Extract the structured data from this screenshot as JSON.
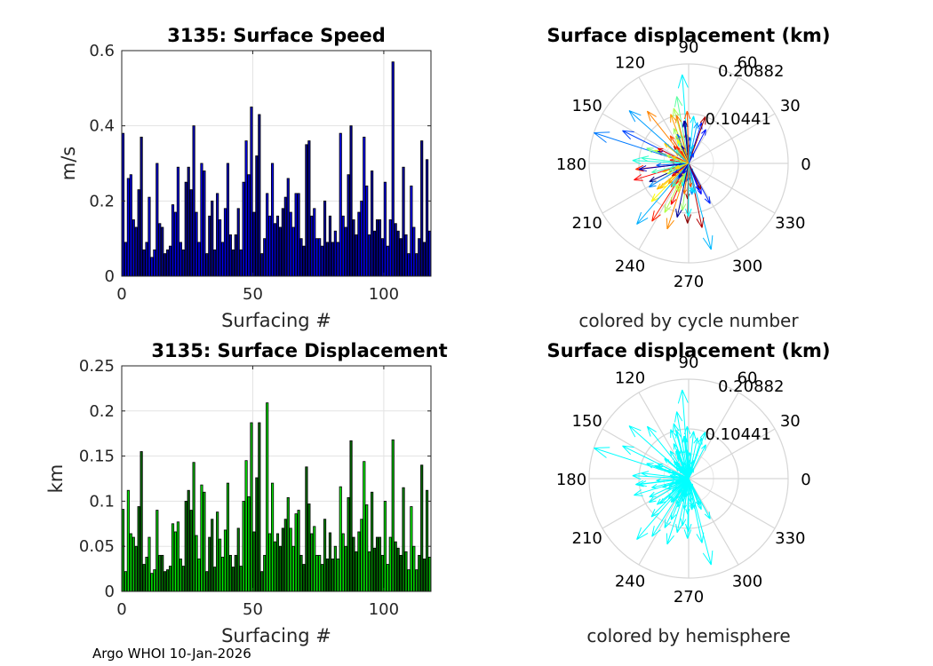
{
  "footer": "Argo WHOI 10-Jan-2026",
  "chart_data": [
    {
      "id": "speed",
      "type": "bar",
      "title": "3135: Surface Speed",
      "xlabel": "Surfacing #",
      "ylabel": "m/s",
      "xlim": [
        0,
        118
      ],
      "ylim": [
        0,
        0.6
      ],
      "xticks": [
        "0",
        "50",
        "100"
      ],
      "xtick_values": [
        0,
        50,
        100
      ],
      "yticks": [
        "0",
        "0.2",
        "0.4",
        "0.6"
      ],
      "ytick_values": [
        0,
        0.2,
        0.4,
        0.6
      ],
      "grid": true,
      "bar_color_start": "#00008b",
      "bar_color_end": "#0000ff",
      "values": [
        0.38,
        0.09,
        0.26,
        0.27,
        0.15,
        0.13,
        0.23,
        0.37,
        0.07,
        0.09,
        0.21,
        0.05,
        0.07,
        0.3,
        0.14,
        0.13,
        0.06,
        0.07,
        0.08,
        0.19,
        0.17,
        0.29,
        0.09,
        0.07,
        0.25,
        0.29,
        0.23,
        0.4,
        0.17,
        0.09,
        0.3,
        0.28,
        0.06,
        0.16,
        0.2,
        0.07,
        0.22,
        0.15,
        0.09,
        0.18,
        0.3,
        0.11,
        0.07,
        0.11,
        0.18,
        0.07,
        0.25,
        0.36,
        0.27,
        0.45,
        0.17,
        0.32,
        0.43,
        0.06,
        0.1,
        0.22,
        0.16,
        0.3,
        0.14,
        0.16,
        0.13,
        0.18,
        0.21,
        0.26,
        0.17,
        0.13,
        0.22,
        0.22,
        0.1,
        0.08,
        0.35,
        0.36,
        0.16,
        0.18,
        0.1,
        0.1,
        0.08,
        0.2,
        0.09,
        0.16,
        0.09,
        0.12,
        0.09,
        0.38,
        0.16,
        0.13,
        0.27,
        0.4,
        0.15,
        0.11,
        0.17,
        0.2,
        0.37,
        0.24,
        0.11,
        0.28,
        0.12,
        0.15,
        0.15,
        0.1,
        0.25,
        0.08,
        0.15,
        0.57,
        0.14,
        0.12,
        0.1,
        0.29,
        0.11,
        0.06,
        0.24,
        0.13,
        0.06,
        0.1,
        0.36,
        0.09,
        0.31,
        0.12
      ]
    },
    {
      "id": "displacement",
      "type": "bar",
      "title": "3135: Surface Displacement",
      "xlabel": "Surfacing #",
      "ylabel": "km",
      "xlim": [
        0,
        118
      ],
      "ylim": [
        0,
        0.25
      ],
      "xticks": [
        "0",
        "50",
        "100"
      ],
      "xtick_values": [
        0,
        50,
        100
      ],
      "yticks": [
        "0",
        "0.05",
        "0.1",
        "0.15",
        "0.2",
        "0.25"
      ],
      "ytick_values": [
        0,
        0.05,
        0.1,
        0.15,
        0.2,
        0.25
      ],
      "grid": true,
      "bar_color_start": "#006400",
      "bar_color_end": "#00ff00",
      "values": [
        0.091,
        0.022,
        0.112,
        0.064,
        0.06,
        0.05,
        0.094,
        0.155,
        0.03,
        0.038,
        0.06,
        0.02,
        0.024,
        0.09,
        0.04,
        0.04,
        0.022,
        0.024,
        0.028,
        0.075,
        0.066,
        0.077,
        0.036,
        0.028,
        0.1,
        0.112,
        0.09,
        0.143,
        0.062,
        0.036,
        0.118,
        0.11,
        0.022,
        0.06,
        0.08,
        0.027,
        0.088,
        0.058,
        0.038,
        0.068,
        0.12,
        0.04,
        0.027,
        0.04,
        0.07,
        0.028,
        0.1,
        0.145,
        0.105,
        0.187,
        0.066,
        0.126,
        0.187,
        0.022,
        0.04,
        0.209,
        0.064,
        0.12,
        0.055,
        0.064,
        0.05,
        0.07,
        0.08,
        0.104,
        0.07,
        0.05,
        0.086,
        0.09,
        0.04,
        0.03,
        0.138,
        0.097,
        0.064,
        0.072,
        0.04,
        0.04,
        0.03,
        0.08,
        0.036,
        0.065,
        0.036,
        0.05,
        0.036,
        0.116,
        0.064,
        0.05,
        0.104,
        0.167,
        0.06,
        0.044,
        0.066,
        0.08,
        0.144,
        0.096,
        0.044,
        0.11,
        0.048,
        0.06,
        0.06,
        0.04,
        0.1,
        0.03,
        0.06,
        0.168,
        0.055,
        0.048,
        0.04,
        0.115,
        0.044,
        0.024,
        0.094,
        0.05,
        0.024,
        0.04,
        0.14,
        0.036,
        0.112,
        0.038
      ]
    },
    {
      "id": "polar_cycle",
      "type": "polar-compass",
      "title": "Surface displacement (km)",
      "caption": "colored by cycle number",
      "rmax": 0.20882,
      "rtick_labels": [
        "0.10441",
        "0.20882"
      ],
      "rtick_values": [
        0.10441,
        0.20882
      ],
      "angle_labels": [
        "0",
        "30",
        "60",
        "90",
        "120",
        "150",
        "180",
        "210",
        "240",
        "270",
        "300",
        "330"
      ],
      "angle_values": [
        0,
        30,
        60,
        90,
        120,
        150,
        180,
        210,
        240,
        270,
        300,
        330
      ],
      "color_scheme": "jet by cycle"
    },
    {
      "id": "polar_hemisphere",
      "type": "polar-compass",
      "title": "Surface displacement (km)",
      "caption": "colored by hemisphere",
      "rmax": 0.20882,
      "rtick_labels": [
        "0.10441",
        "0.20882"
      ],
      "rtick_values": [
        0.10441,
        0.20882
      ],
      "angle_labels": [
        "0",
        "30",
        "60",
        "90",
        "120",
        "150",
        "180",
        "210",
        "240",
        "270",
        "300",
        "330"
      ],
      "angle_values": [
        0,
        30,
        60,
        90,
        120,
        150,
        180,
        210,
        240,
        270,
        300,
        330
      ],
      "arrow_color": "#00ffff"
    }
  ]
}
